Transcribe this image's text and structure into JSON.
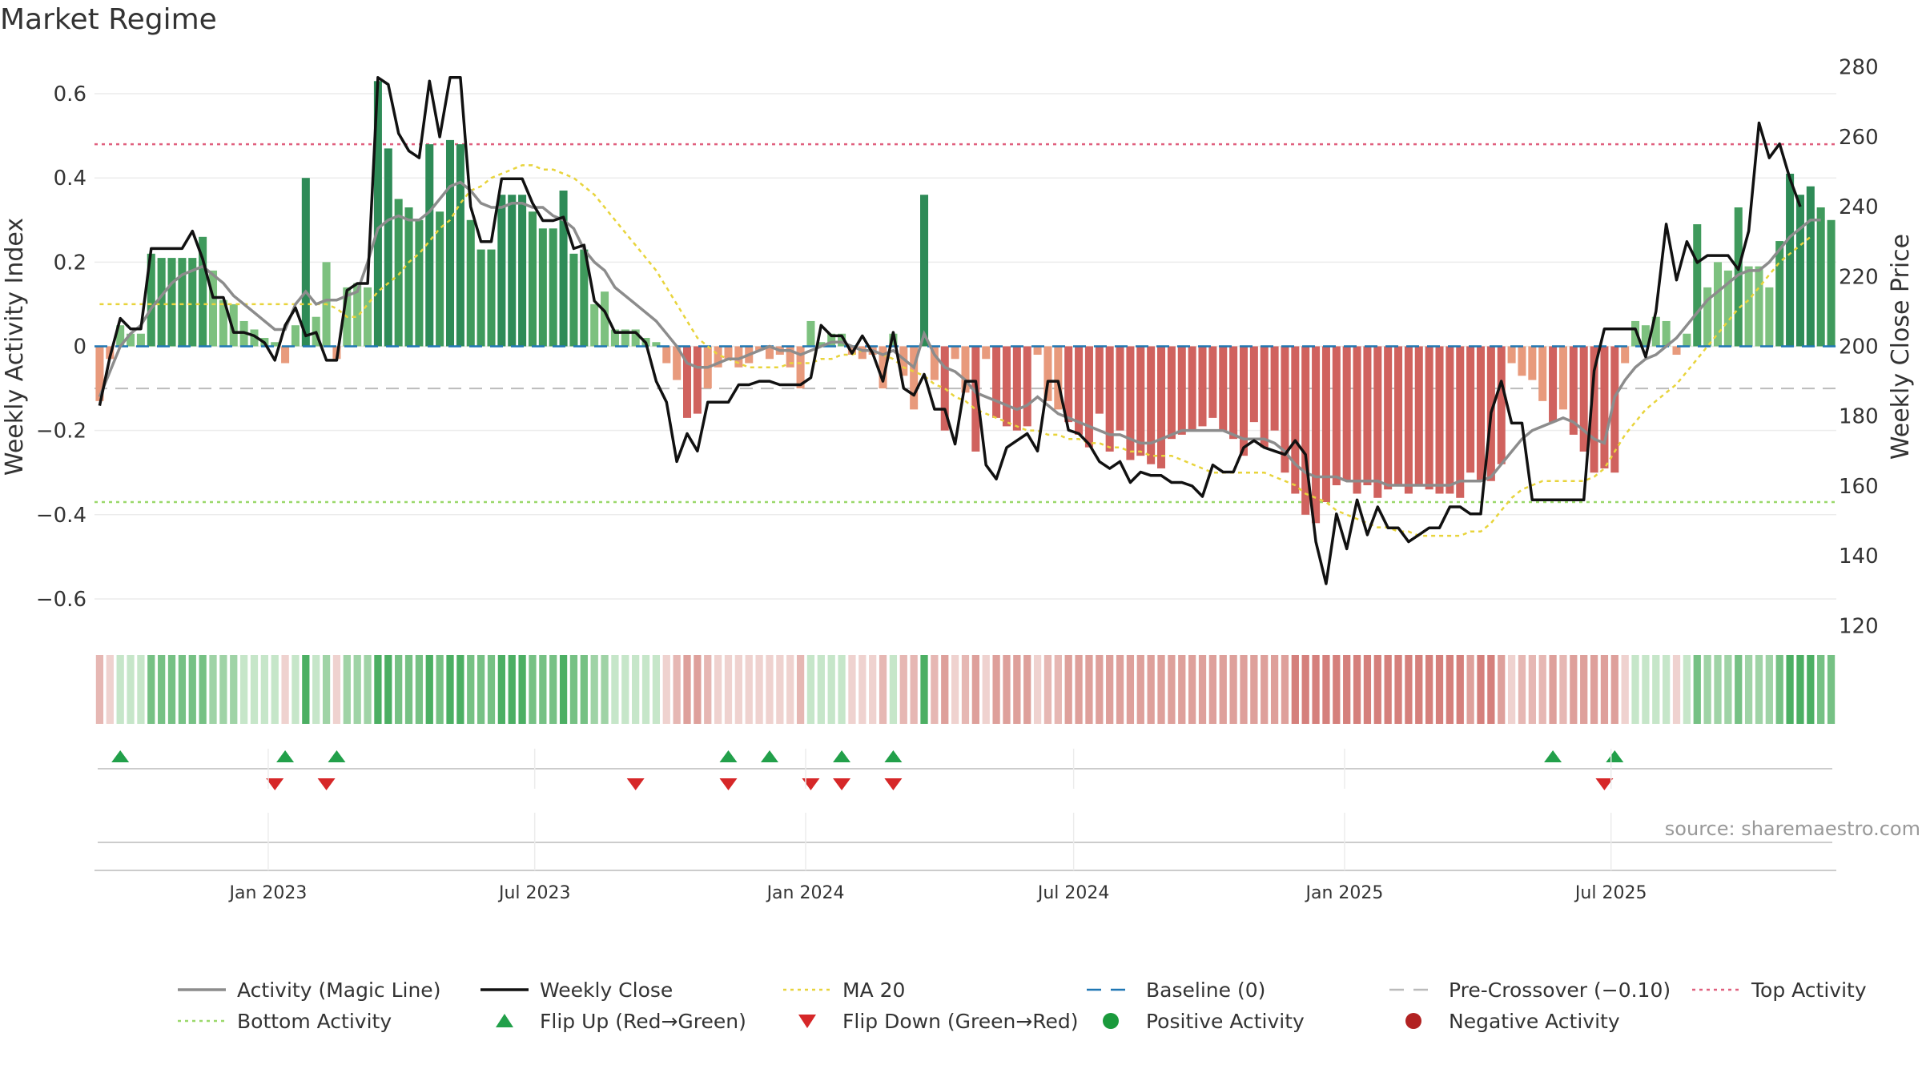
{
  "title": "Market Regime",
  "source": "source: sharemaestro.com",
  "chart_data": {
    "type": "bar",
    "start_date": "2022-09-05",
    "x_ticks": [
      "Jan 2023",
      "Jul 2023",
      "Jan 2024",
      "Jul 2024",
      "Jan 2025",
      "Jul 2025"
    ],
    "ylabel_left": "Weekly Activity Index",
    "ylabel_right": "Weekly Close Price",
    "ylim_left": [
      -0.68,
      0.68
    ],
    "ylim_right": [
      118,
      282
    ],
    "yticks_left": [
      "0.6",
      "0.4",
      "0.2",
      "0",
      "−0.2",
      "−0.4",
      "−0.6"
    ],
    "yticks_right": [
      "280",
      "260",
      "240",
      "220",
      "200",
      "180",
      "160",
      "140",
      "120"
    ],
    "reference_lines": {
      "top_activity": 0.48,
      "bottom_activity": -0.37,
      "baseline": 0,
      "pre_crossover": -0.1
    },
    "activity": [
      -0.13,
      -0.03,
      0.05,
      0.03,
      0.03,
      0.22,
      0.21,
      0.21,
      0.21,
      0.21,
      0.26,
      0.18,
      0.11,
      0.1,
      0.06,
      0.04,
      0.02,
      0.01,
      -0.04,
      0.05,
      0.4,
      0.07,
      0.2,
      -0.03,
      0.14,
      0.15,
      0.14,
      0.63,
      0.47,
      0.35,
      0.33,
      0.3,
      0.48,
      0.32,
      0.49,
      0.48,
      0.3,
      0.23,
      0.23,
      0.36,
      0.36,
      0.36,
      0.32,
      0.28,
      0.28,
      0.37,
      0.22,
      0.23,
      0.1,
      0.13,
      0.04,
      0.04,
      0.04,
      0.02,
      0.01,
      -0.04,
      -0.08,
      -0.17,
      -0.16,
      -0.1,
      -0.05,
      -0.03,
      -0.05,
      -0.04,
      -0.01,
      -0.03,
      -0.02,
      -0.05,
      -0.1,
      0.06,
      0.01,
      0.03,
      0.03,
      -0.02,
      -0.03,
      -0.02,
      -0.1,
      0.03,
      -0.07,
      -0.15,
      0.36,
      -0.08,
      -0.2,
      -0.03,
      -0.11,
      -0.25,
      -0.03,
      -0.17,
      -0.19,
      -0.2,
      -0.19,
      -0.02,
      -0.13,
      -0.15,
      -0.18,
      -0.21,
      -0.24,
      -0.16,
      -0.25,
      -0.2,
      -0.27,
      -0.26,
      -0.28,
      -0.29,
      -0.22,
      -0.21,
      -0.2,
      -0.19,
      -0.17,
      -0.2,
      -0.22,
      -0.26,
      -0.18,
      -0.24,
      -0.2,
      -0.3,
      -0.35,
      -0.4,
      -0.42,
      -0.37,
      -0.33,
      -0.32,
      -0.35,
      -0.33,
      -0.36,
      -0.34,
      -0.33,
      -0.35,
      -0.33,
      -0.34,
      -0.35,
      -0.35,
      -0.36,
      -0.3,
      -0.32,
      -0.32,
      -0.28,
      -0.04,
      -0.07,
      -0.08,
      -0.13,
      -0.18,
      -0.15,
      -0.21,
      -0.25,
      -0.3,
      -0.29,
      -0.3,
      -0.04,
      0.06,
      0.05,
      0.07,
      0.06,
      -0.02,
      0.03,
      0.29,
      0.14,
      0.2,
      0.18,
      0.33,
      0.19,
      0.19,
      0.14,
      0.25,
      0.41,
      0.36,
      0.38,
      0.33,
      0.3
    ],
    "magic_line": [
      -0.12,
      -0.06,
      0.0,
      0.03,
      0.05,
      0.09,
      0.12,
      0.15,
      0.17,
      0.18,
      0.19,
      0.17,
      0.15,
      0.12,
      0.1,
      0.08,
      0.06,
      0.04,
      0.04,
      0.1,
      0.13,
      0.1,
      0.11,
      0.11,
      0.12,
      0.13,
      0.2,
      0.28,
      0.3,
      0.31,
      0.3,
      0.3,
      0.32,
      0.35,
      0.38,
      0.39,
      0.37,
      0.34,
      0.33,
      0.33,
      0.34,
      0.34,
      0.33,
      0.33,
      0.31,
      0.3,
      0.28,
      0.23,
      0.2,
      0.18,
      0.14,
      0.12,
      0.1,
      0.08,
      0.06,
      0.03,
      0.0,
      -0.04,
      -0.05,
      -0.05,
      -0.04,
      -0.03,
      -0.03,
      -0.02,
      -0.01,
      0.0,
      -0.01,
      -0.01,
      -0.02,
      -0.01,
      0.0,
      0.01,
      0.01,
      0.0,
      -0.01,
      -0.01,
      -0.02,
      -0.01,
      -0.03,
      -0.05,
      0.03,
      -0.02,
      -0.05,
      -0.06,
      -0.08,
      -0.11,
      -0.12,
      -0.13,
      -0.14,
      -0.15,
      -0.14,
      -0.12,
      -0.14,
      -0.16,
      -0.17,
      -0.18,
      -0.19,
      -0.2,
      -0.21,
      -0.21,
      -0.22,
      -0.23,
      -0.23,
      -0.22,
      -0.21,
      -0.2,
      -0.2,
      -0.2,
      -0.2,
      -0.2,
      -0.21,
      -0.22,
      -0.22,
      -0.22,
      -0.23,
      -0.25,
      -0.28,
      -0.3,
      -0.31,
      -0.31,
      -0.31,
      -0.32,
      -0.32,
      -0.32,
      -0.32,
      -0.33,
      -0.33,
      -0.33,
      -0.33,
      -0.33,
      -0.33,
      -0.33,
      -0.32,
      -0.32,
      -0.32,
      -0.31,
      -0.28,
      -0.25,
      -0.22,
      -0.2,
      -0.19,
      -0.18,
      -0.17,
      -0.18,
      -0.2,
      -0.22,
      -0.23,
      -0.12,
      -0.08,
      -0.05,
      -0.03,
      -0.02,
      0.0,
      0.02,
      0.05,
      0.08,
      0.11,
      0.13,
      0.15,
      0.17,
      0.18,
      0.18,
      0.2,
      0.23,
      0.26,
      0.28,
      0.3,
      0.3
    ],
    "ma20": [
      0.1,
      0.1,
      0.1,
      0.1,
      0.1,
      0.1,
      0.1,
      0.1,
      0.1,
      0.1,
      0.1,
      0.1,
      0.1,
      0.1,
      0.1,
      0.1,
      0.1,
      0.1,
      0.1,
      0.1,
      0.1,
      0.1,
      0.1,
      0.09,
      0.07,
      0.07,
      0.1,
      0.13,
      0.15,
      0.17,
      0.2,
      0.22,
      0.25,
      0.28,
      0.3,
      0.34,
      0.37,
      0.38,
      0.4,
      0.41,
      0.42,
      0.43,
      0.43,
      0.42,
      0.42,
      0.41,
      0.4,
      0.38,
      0.36,
      0.33,
      0.3,
      0.27,
      0.24,
      0.21,
      0.18,
      0.14,
      0.1,
      0.06,
      0.02,
      0.0,
      -0.02,
      -0.03,
      -0.04,
      -0.05,
      -0.05,
      -0.05,
      -0.05,
      -0.04,
      -0.04,
      -0.04,
      -0.03,
      -0.03,
      -0.02,
      -0.02,
      -0.01,
      -0.01,
      -0.02,
      -0.03,
      -0.05,
      -0.06,
      -0.07,
      -0.09,
      -0.1,
      -0.12,
      -0.13,
      -0.15,
      -0.16,
      -0.17,
      -0.18,
      -0.19,
      -0.2,
      -0.2,
      -0.21,
      -0.21,
      -0.22,
      -0.22,
      -0.23,
      -0.23,
      -0.24,
      -0.24,
      -0.25,
      -0.25,
      -0.26,
      -0.26,
      -0.26,
      -0.27,
      -0.28,
      -0.29,
      -0.3,
      -0.3,
      -0.3,
      -0.3,
      -0.3,
      -0.3,
      -0.31,
      -0.32,
      -0.33,
      -0.35,
      -0.36,
      -0.37,
      -0.39,
      -0.4,
      -0.41,
      -0.42,
      -0.43,
      -0.43,
      -0.44,
      -0.44,
      -0.45,
      -0.45,
      -0.45,
      -0.45,
      -0.45,
      -0.44,
      -0.44,
      -0.42,
      -0.39,
      -0.36,
      -0.34,
      -0.33,
      -0.32,
      -0.32,
      -0.32,
      -0.32,
      -0.32,
      -0.31,
      -0.29,
      -0.25,
      -0.21,
      -0.18,
      -0.15,
      -0.13,
      -0.11,
      -0.09,
      -0.06,
      -0.03,
      0.0,
      0.03,
      0.06,
      0.09,
      0.11,
      0.14,
      0.17,
      0.2,
      0.22,
      0.24,
      0.26
    ],
    "weekly_close": [
      183,
      197,
      208,
      205,
      205,
      228,
      228,
      228,
      228,
      233,
      225,
      214,
      214,
      204,
      204,
      203,
      201,
      196,
      206,
      211,
      203,
      204,
      196,
      196,
      216,
      218,
      218,
      277,
      275,
      261,
      256,
      254,
      276,
      260,
      277,
      277,
      240,
      230,
      230,
      248,
      248,
      248,
      241,
      236,
      236,
      237,
      228,
      229,
      213,
      210,
      204,
      204,
      204,
      201,
      190,
      184,
      167,
      175,
      170,
      184,
      184,
      184,
      189,
      189,
      190,
      190,
      189,
      189,
      189,
      191,
      206,
      203,
      203,
      198,
      203,
      198,
      190,
      204,
      188,
      186,
      192,
      182,
      182,
      172,
      190,
      190,
      166,
      162,
      171,
      173,
      175,
      170,
      190,
      190,
      176,
      175,
      172,
      167,
      165,
      167,
      161,
      164,
      163,
      163,
      161,
      161,
      160,
      157,
      166,
      164,
      164,
      171,
      173,
      171,
      170,
      169,
      173,
      169,
      144,
      132,
      152,
      142,
      156,
      146,
      154,
      148,
      148,
      144,
      146,
      148,
      148,
      154,
      154,
      152,
      152,
      181,
      190,
      178,
      178,
      156,
      156,
      156,
      156,
      156,
      156,
      193,
      205,
      205,
      205,
      205,
      197,
      210,
      235,
      219,
      230,
      224,
      226,
      226,
      226,
      222,
      233,
      264,
      254,
      258,
      248,
      240
    ],
    "flips_up": [
      2,
      18,
      23,
      61,
      65,
      72,
      77,
      141,
      147
    ],
    "flips_down": [
      17,
      22,
      52,
      61,
      69,
      72,
      77,
      146
    ]
  },
  "legend": [
    {
      "label": "Activity (Magic Line)",
      "color": "#8c8c8c",
      "kind": "line"
    },
    {
      "label": "Weekly Close",
      "color": "#111111",
      "kind": "line"
    },
    {
      "label": "MA 20",
      "color": "#e8d43c",
      "kind": "dotted"
    },
    {
      "label": "Baseline (0)",
      "color": "#1f77b4",
      "kind": "dashed"
    },
    {
      "label": "Pre-Crossover (−0.10)",
      "color": "#bbbbbb",
      "kind": "dashed"
    },
    {
      "label": "Top Activity",
      "color": "#e0607e",
      "kind": "dotted"
    },
    {
      "label": "Bottom Activity",
      "color": "#9ad86a",
      "kind": "dotted"
    },
    {
      "label": "Flip Up (Red→Green)",
      "color": "#22a04a",
      "kind": "triangle-up"
    },
    {
      "label": "Flip Down (Green→Red)",
      "color": "#d62728",
      "kind": "triangle-down"
    },
    {
      "label": "Positive Activity",
      "color": "#1a9a3c",
      "kind": "circle"
    },
    {
      "label": "Negative Activity",
      "color": "#b22222",
      "kind": "circle"
    }
  ]
}
